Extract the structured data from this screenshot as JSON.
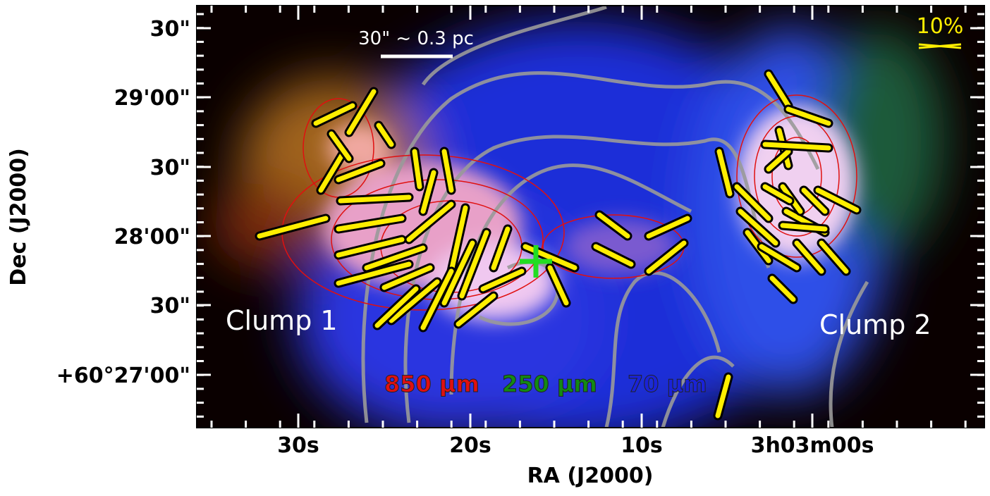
{
  "axes": {
    "x_label": "RA (J2000)",
    "y_label": "Dec (J2000)",
    "x_ticks": [
      "30s",
      "20s",
      "10s",
      "3h03m00s"
    ],
    "y_ticks": [
      "30\"",
      "29'00\"",
      "30\"",
      "28'00\"",
      "30\"",
      "+60°27'00\""
    ]
  },
  "annotations": {
    "scale_bar": "30\" ~ 0.3 pc",
    "polarization_scale": "10%",
    "clump_1": "Clump 1",
    "clump_2": "Clump 2"
  },
  "legend": [
    "850 μm",
    "250 μm",
    "70 μm"
  ]
}
